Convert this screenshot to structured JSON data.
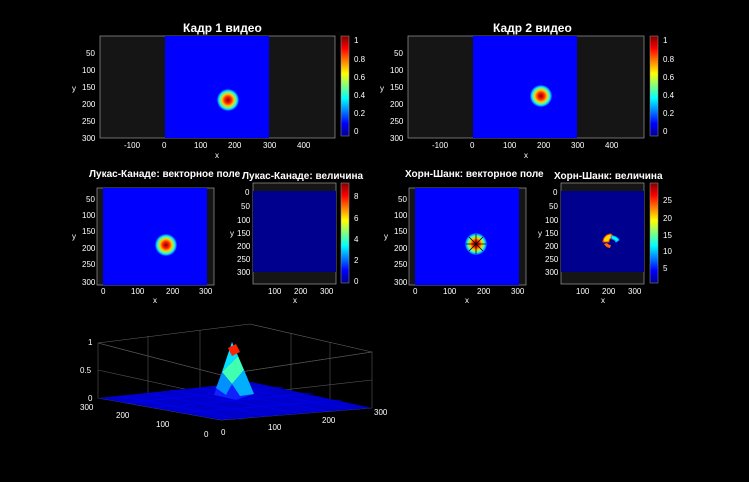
{
  "panels": [
    {
      "title": "Кадр 1 видео",
      "xlabel": "x",
      "ylabel": "y",
      "xticks": [
        "-100",
        "0",
        "100",
        "200",
        "300",
        "400"
      ],
      "yticks": [
        "50",
        "100",
        "150",
        "200",
        "250",
        "300"
      ],
      "cbar_ticks": [
        "1",
        "0.8",
        "0.6",
        "0.4",
        "0.2",
        "0"
      ]
    },
    {
      "title": "Кадр 2 видео",
      "xlabel": "x",
      "ylabel": "y",
      "xticks": [
        "-100",
        "0",
        "100",
        "200",
        "300",
        "400"
      ],
      "yticks": [
        "50",
        "100",
        "150",
        "200",
        "250",
        "300"
      ],
      "cbar_ticks": [
        "1",
        "0.8",
        "0.6",
        "0.4",
        "0.2",
        "0"
      ]
    },
    {
      "title": "Лукас-Канаде: векторное поле",
      "xlabel": "x",
      "ylabel": "y",
      "xticks": [
        "0",
        "100",
        "200",
        "300"
      ],
      "yticks": [
        "50",
        "100",
        "150",
        "200",
        "250",
        "300"
      ]
    },
    {
      "title": "Лукас-Канаде: величина",
      "xlabel": "x",
      "ylabel": "y",
      "xticks": [
        "100",
        "200",
        "300"
      ],
      "yticks": [
        "0",
        "50",
        "100",
        "150",
        "200",
        "250",
        "300"
      ],
      "cbar_ticks": [
        "8",
        "6",
        "4",
        "2",
        "0"
      ]
    },
    {
      "title": "Хорн-Шанк: векторное поле",
      "xlabel": "x",
      "ylabel": "y",
      "xticks": [
        "0",
        "100",
        "200",
        "300"
      ],
      "yticks": [
        "50",
        "100",
        "150",
        "200",
        "250",
        "300"
      ]
    },
    {
      "title": "Хорн-Шанк: величина",
      "xlabel": "x",
      "ylabel": "y",
      "xticks": [
        "100",
        "200",
        "300"
      ],
      "yticks": [
        "0",
        "50",
        "100",
        "150",
        "200",
        "250",
        "300"
      ],
      "cbar_ticks": [
        "25",
        "20",
        "15",
        "10",
        "5"
      ]
    }
  ],
  "surface": {
    "zticks": [
      "1",
      "0.5",
      "0"
    ],
    "left_ticks": [
      "300",
      "200",
      "100",
      "0"
    ],
    "right_ticks": [
      "0",
      "100",
      "200",
      "300"
    ]
  },
  "colors": {
    "background": "#000000",
    "jet_blue": "#0000ff",
    "jet_red": "#ff0000",
    "grid": "#555555"
  }
}
